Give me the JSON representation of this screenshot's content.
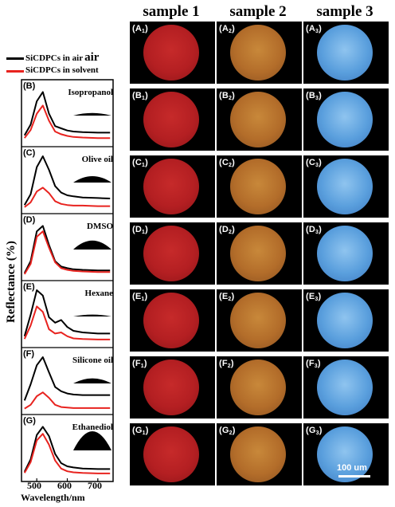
{
  "columns": [
    "sample 1",
    "sample 2",
    "sample 3"
  ],
  "legend": {
    "air": "SiCDPCs in air",
    "air_suffix": "air",
    "solvent": "SiCDPCs in solvent",
    "air_color": "#000000",
    "solvent_color": "#e8231f"
  },
  "panels": [
    {
      "letter": "(B)",
      "solvent": "Isopropanol"
    },
    {
      "letter": "(C)",
      "solvent": "Olive oil"
    },
    {
      "letter": "(D)",
      "solvent": "DMSO"
    },
    {
      "letter": "(E)",
      "solvent": "Hexane"
    },
    {
      "letter": "(F)",
      "solvent": "Silicone oil"
    },
    {
      "letter": "(G)",
      "solvent": "Ethanediol"
    }
  ],
  "axes": {
    "ylabel": "Reflectance (%)",
    "xlabel": "Wavelength/nm",
    "xticks": [
      "500",
      "600",
      "700"
    ]
  },
  "grid_rows": [
    "A",
    "B",
    "C",
    "D",
    "E",
    "F",
    "G"
  ],
  "scale_bar": "100 um",
  "chart_data": [
    {
      "type": "line",
      "panel": "B",
      "x": [
        460,
        480,
        500,
        520,
        540,
        560,
        580,
        600,
        620,
        650,
        700,
        740
      ],
      "series": [
        {
          "name": "SiCDPCs in air",
          "values": [
            0.15,
            0.35,
            0.78,
            0.95,
            0.55,
            0.32,
            0.28,
            0.24,
            0.22,
            0.21,
            0.2,
            0.2
          ]
        },
        {
          "name": "SiCDPCs in solvent",
          "values": [
            0.1,
            0.25,
            0.55,
            0.7,
            0.42,
            0.22,
            0.17,
            0.14,
            0.12,
            0.11,
            0.1,
            0.1
          ]
        }
      ]
    },
    {
      "type": "line",
      "panel": "C",
      "x": [
        460,
        480,
        500,
        520,
        540,
        560,
        580,
        600,
        620,
        650,
        700,
        740
      ],
      "series": [
        {
          "name": "SiCDPCs in air",
          "values": [
            0.1,
            0.3,
            0.8,
            1.0,
            0.75,
            0.45,
            0.33,
            0.28,
            0.26,
            0.24,
            0.23,
            0.22
          ]
        },
        {
          "name": "SiCDPCs in solvent",
          "values": [
            0.06,
            0.15,
            0.35,
            0.42,
            0.32,
            0.17,
            0.12,
            0.1,
            0.09,
            0.09,
            0.08,
            0.08
          ]
        }
      ]
    },
    {
      "type": "line",
      "panel": "D",
      "x": [
        460,
        480,
        500,
        520,
        540,
        560,
        580,
        600,
        620,
        650,
        700,
        740
      ],
      "series": [
        {
          "name": "SiCDPCs in air",
          "values": [
            0.08,
            0.3,
            0.85,
            0.95,
            0.6,
            0.3,
            0.2,
            0.17,
            0.15,
            0.14,
            0.13,
            0.13
          ]
        },
        {
          "name": "SiCDPCs in solvent",
          "values": [
            0.06,
            0.25,
            0.75,
            0.85,
            0.55,
            0.28,
            0.17,
            0.14,
            0.12,
            0.11,
            0.1,
            0.1
          ]
        }
      ]
    },
    {
      "type": "line",
      "panel": "E",
      "x": [
        460,
        480,
        500,
        520,
        540,
        560,
        580,
        600,
        620,
        650,
        700,
        740
      ],
      "series": [
        {
          "name": "SiCDPCs in air",
          "values": [
            0.15,
            0.55,
            1.0,
            0.9,
            0.5,
            0.4,
            0.45,
            0.32,
            0.25,
            0.22,
            0.2,
            0.2
          ]
        },
        {
          "name": "SiCDPCs in solvent",
          "values": [
            0.1,
            0.35,
            0.7,
            0.6,
            0.28,
            0.2,
            0.22,
            0.15,
            0.11,
            0.1,
            0.09,
            0.09
          ]
        }
      ]
    },
    {
      "type": "line",
      "panel": "F",
      "x": [
        460,
        480,
        500,
        520,
        540,
        560,
        580,
        600,
        620,
        650,
        700,
        740
      ],
      "series": [
        {
          "name": "SiCDPCs in air",
          "values": [
            0.2,
            0.5,
            0.85,
            1.0,
            0.72,
            0.45,
            0.37,
            0.33,
            0.31,
            0.3,
            0.3,
            0.3
          ]
        },
        {
          "name": "SiCDPCs in solvent",
          "values": [
            0.05,
            0.12,
            0.28,
            0.35,
            0.25,
            0.12,
            0.08,
            0.07,
            0.06,
            0.06,
            0.06,
            0.06
          ]
        }
      ]
    },
    {
      "type": "line",
      "panel": "G",
      "x": [
        460,
        480,
        500,
        520,
        540,
        560,
        580,
        600,
        620,
        650,
        700,
        740
      ],
      "series": [
        {
          "name": "SiCDPCs in air",
          "values": [
            0.12,
            0.35,
            0.8,
            0.95,
            0.78,
            0.45,
            0.28,
            0.22,
            0.2,
            0.18,
            0.17,
            0.17
          ]
        },
        {
          "name": "SiCDPCs in solvent",
          "values": [
            0.1,
            0.3,
            0.7,
            0.82,
            0.62,
            0.33,
            0.18,
            0.13,
            0.11,
            0.1,
            0.09,
            0.09
          ]
        }
      ]
    }
  ]
}
